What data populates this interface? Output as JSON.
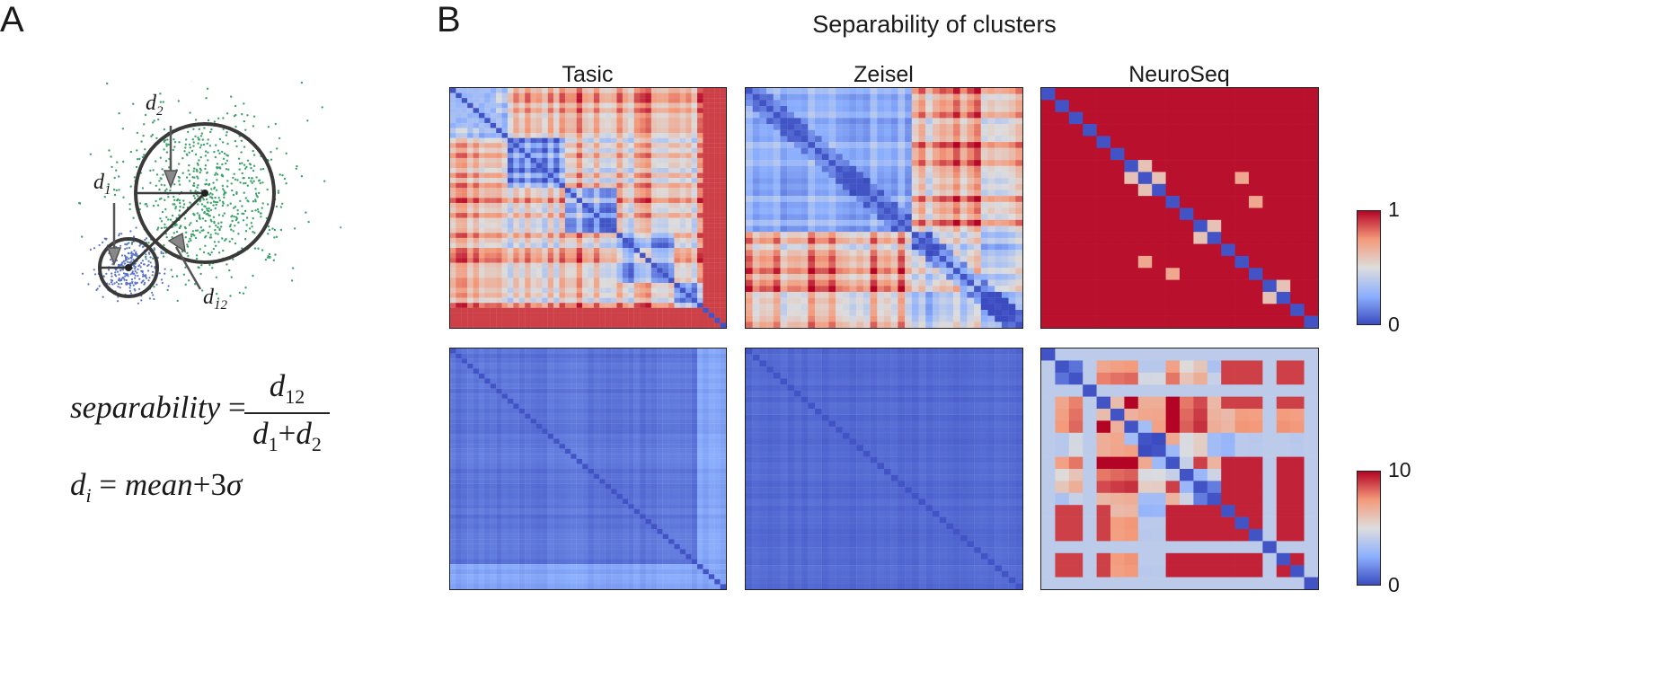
{
  "panel_a": {
    "letter": "A",
    "diagram_labels": {
      "d2": "d",
      "d2_sub": "2",
      "d1": "d",
      "d1_sub": "1",
      "d12": "d",
      "d12_sub": "12"
    },
    "formula1": {
      "lhs": "separability",
      "eq": "=",
      "num": "d",
      "num_sub": "12",
      "den_a": "d",
      "den_a_sub": "1",
      "plus": "+",
      "den_b": "d",
      "den_b_sub": "2"
    },
    "formula2": {
      "lhs": "d",
      "lhs_sub": "i",
      "eq": "=",
      "term": "mean",
      "plus": "+",
      "coef": "3",
      "sigma": "σ"
    },
    "colors": {
      "cluster_small": "#5b74c9",
      "cluster_large": "#3ea36b",
      "circle": "#3a3a3a"
    }
  },
  "panel_b": {
    "letter": "B",
    "title": "Separability of clusters",
    "columns": [
      "Tasic",
      "Zeisel",
      "NeuroSeq"
    ],
    "colorbars": [
      {
        "max": "1",
        "min": "0"
      },
      {
        "max": "10",
        "min": "0"
      }
    ],
    "colormap": {
      "low": "#3b4cc0",
      "mid": "#dddddd",
      "high": "#b40426"
    }
  },
  "chart_data": [
    {
      "type": "heatmap",
      "title": "Tasic",
      "row": "top",
      "n": 48,
      "vmin": 0,
      "vmax": 1,
      "pattern": "mostly red off-diagonal, blue diagonal blocks, red trailing rows"
    },
    {
      "type": "heatmap",
      "title": "Zeisel",
      "row": "top",
      "n": 40,
      "vmin": 0,
      "vmax": 1,
      "pattern": "two large blue blocks, red off-diagonal quadrants"
    },
    {
      "type": "heatmap",
      "title": "NeuroSeq",
      "row": "top",
      "n": 20,
      "vmin": 0,
      "vmax": 1,
      "pattern": "saturated red except blue diagonal"
    },
    {
      "type": "heatmap",
      "title": "Tasic",
      "row": "bottom",
      "n": 48,
      "vmin": 0,
      "vmax": 10,
      "pattern": "near-uniform low (blue)"
    },
    {
      "type": "heatmap",
      "title": "Zeisel",
      "row": "bottom",
      "n": 40,
      "vmin": 0,
      "vmax": 10,
      "pattern": "near-uniform low (blue)"
    },
    {
      "type": "heatmap",
      "title": "NeuroSeq",
      "row": "bottom",
      "n": 20,
      "vmin": 0,
      "vmax": 10,
      "pattern": "mixed, red in lower-right and upper-right, blue diagonal"
    }
  ]
}
